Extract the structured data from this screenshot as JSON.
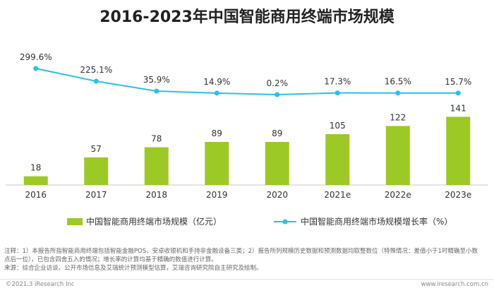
{
  "chart_data": {
    "type": "bar",
    "title": "2016-2023年中国智能商用终端市场规模",
    "categories": [
      "2016",
      "2017",
      "2018",
      "2019",
      "2020",
      "2021e",
      "2022e",
      "2023e"
    ],
    "series": [
      {
        "name": "中国智能商用终端市场规模（亿元）",
        "type": "bar",
        "values": [
          18,
          57,
          78,
          89,
          89,
          105,
          122,
          141
        ],
        "labels": [
          "18",
          "57",
          "78",
          "89",
          "89",
          "105",
          "122",
          "141"
        ]
      },
      {
        "name": "中国智能商用终端市场规模增长率（%）",
        "type": "line",
        "values": [
          299.6,
          225.1,
          35.9,
          14.9,
          0.2,
          17.3,
          16.5,
          15.7
        ],
        "labels": [
          "299.6%",
          "225.1%",
          "35.9%",
          "14.9%",
          "0.2%",
          "17.3%",
          "16.5%",
          "15.7%"
        ]
      }
    ],
    "colors": {
      "bar": "#9dc927",
      "line": "#29c1e8"
    },
    "legend_position": "bottom"
  },
  "notes": {
    "line1": "注释：1）本报告所指智能商用终端包括智能金融POS、安卓收银机和手持非金融设备三类；2）报告所列规模历史数据和预测数据均取整数位（特殊情况：差值小于1时精确至小数",
    "line2": "点后一位），已包含四舍五入的情况；增长率的计算均基于精确的数值进行计算。",
    "line3": "来源：综合企业访谈、公开市场信息及艾瑞统计预测模型估算，艾瑞咨询研究院自主研究及绘制。"
  },
  "footer": {
    "left": "©2021.3 iResearch Inc",
    "right": "www.iresearch.com.cn"
  }
}
